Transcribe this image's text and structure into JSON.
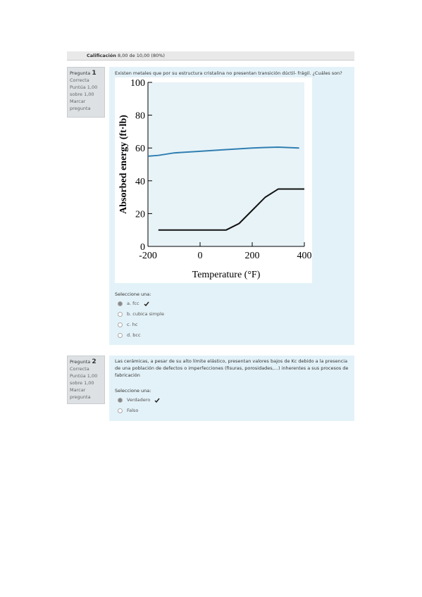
{
  "header": {
    "grade_label": "Calificación",
    "grade_value": "8,00 de 10,00 (80%)"
  },
  "questions": [
    {
      "number_label": "Pregunta",
      "number": "1",
      "state": "Correcta",
      "score": "Puntúa 1,00 sobre 1,00",
      "flag": "Marcar pregunta",
      "text": "Existen metales que por su estructura cristalina no presentan transición dúctil- frágil. ¿Cuáles son?",
      "prompt": "Seleccione una:",
      "options": [
        "a. fcc",
        "b. cubica simple",
        "c. hc",
        "d. bcc"
      ]
    },
    {
      "number_label": "Pregunta",
      "number": "2",
      "state": "Correcta",
      "score": "Puntúa 1,00 sobre 1,00",
      "flag": "Marcar pregunta",
      "text": "Las cerámicas, a pesar de su alto límite elástico, presentan valores bajos de Kc debido a la presencia de una población de defectos o imperfecciones (fisuras, porosidades,...) inherentes a sus procesos de fabricación",
      "prompt": "Seleccione una:",
      "options": [
        "Verdadero",
        "Falso"
      ]
    }
  ],
  "chart_data": {
    "type": "line",
    "x_label": "Temperature (°F)",
    "y_label": "Absorbed energy (ft·lb)",
    "x": [
      -200,
      -160,
      -100,
      0,
      100,
      150,
      200,
      250,
      300,
      380,
      400
    ],
    "series": [
      {
        "color": "#2f7fb0",
        "values": [
          55,
          55.5,
          57,
          58,
          59,
          59.5,
          60,
          60.3,
          60.5,
          60,
          null
        ]
      },
      {
        "color": "#111111",
        "values": [
          null,
          10,
          10,
          10,
          10,
          14,
          22,
          30,
          35,
          35,
          35
        ]
      }
    ],
    "xlim": [
      -200,
      400
    ],
    "ylim": [
      0,
      100
    ],
    "xticks": [
      -200,
      0,
      200,
      400
    ],
    "yticks": [
      0,
      20,
      40,
      60,
      80,
      100
    ]
  }
}
